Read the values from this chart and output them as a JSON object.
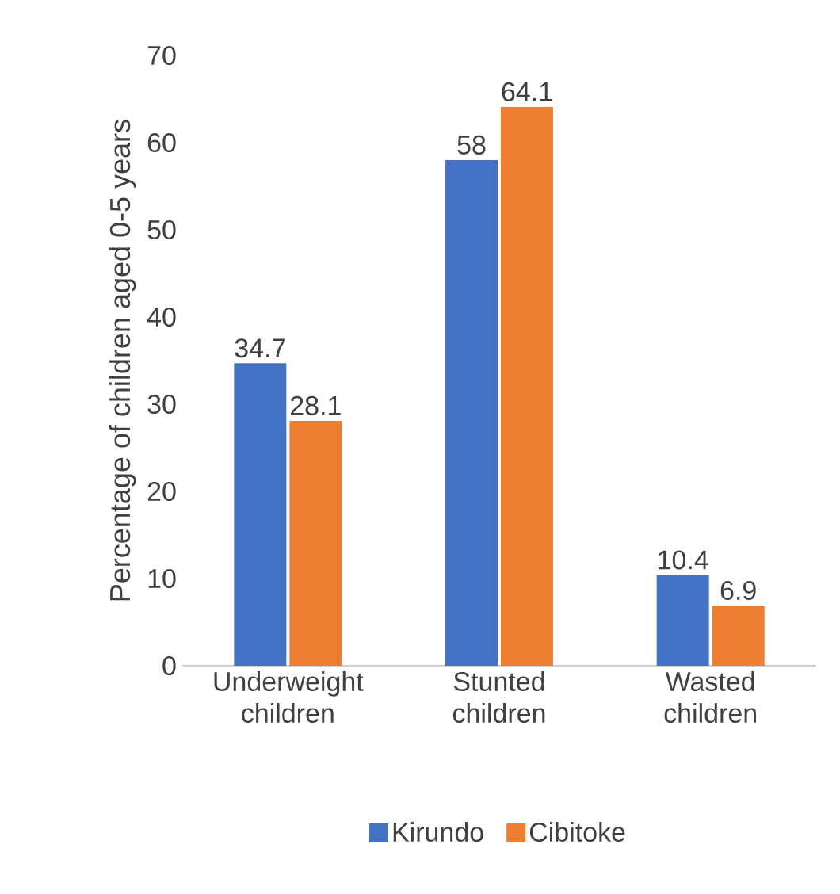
{
  "chart_data": {
    "type": "bar",
    "ylabel": "Percentage of children aged 0-5 years",
    "categories": [
      "Underweight children",
      "Stunted children",
      "Wasted children"
    ],
    "series": [
      {
        "name": "Kirundo",
        "color": "#4472c4",
        "values": [
          34.7,
          58,
          10.4
        ]
      },
      {
        "name": "Cibitoke",
        "color": "#ed7d31",
        "values": [
          28.1,
          64.1,
          6.9
        ]
      }
    ],
    "ylim": [
      0,
      70
    ],
    "yticks": [
      0,
      10,
      20,
      30,
      40,
      50,
      60,
      70
    ],
    "data_labels": true,
    "legend": "bottom"
  }
}
